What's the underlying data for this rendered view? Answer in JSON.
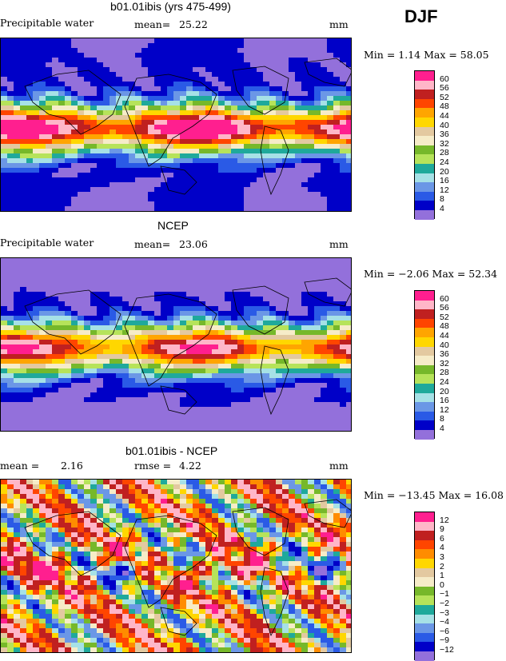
{
  "season": "DJF",
  "panels": [
    {
      "title": "b01.01ibis (yrs 475-499)",
      "left_label": "Precipitable water",
      "mean_label": "mean=",
      "mean_value": "25.22",
      "units": "mm",
      "minmax": "Min =    1.14 Max =   58.05",
      "levels": [
        "60",
        "56",
        "52",
        "48",
        "44",
        "40",
        "36",
        "32",
        "28",
        "24",
        "20",
        "16",
        "12",
        "8",
        "4"
      ],
      "colors": [
        "#ff1f8f",
        "#ffb6c8",
        "#c02020",
        "#ff4500",
        "#ffa500",
        "#ffd700",
        "#e3c9a0",
        "#f6ecc8",
        "#76b82a",
        "#b6e35a",
        "#1fa99b",
        "#a6e1e6",
        "#6b97e6",
        "#2a5ae6",
        "#0000c8",
        "#9370db"
      ]
    },
    {
      "title": "NCEP",
      "left_label": "Precipitable water",
      "mean_label": "mean=",
      "mean_value": "23.06",
      "units": "mm",
      "minmax": "Min =   −2.06 Max =   52.34",
      "levels": [
        "60",
        "56",
        "52",
        "48",
        "44",
        "40",
        "36",
        "32",
        "28",
        "24",
        "20",
        "16",
        "12",
        "8",
        "4"
      ],
      "colors": [
        "#ff1f8f",
        "#ffb6c8",
        "#c02020",
        "#ff4500",
        "#ffa500",
        "#ffd700",
        "#e3c9a0",
        "#f6ecc8",
        "#76b82a",
        "#b6e35a",
        "#1fa99b",
        "#a6e1e6",
        "#6b97e6",
        "#2a5ae6",
        "#0000c8",
        "#9370db"
      ]
    },
    {
      "title": "b01.01ibis - NCEP",
      "left_label": "mean =",
      "mean_label": "2.16",
      "rmse_label": "rmse =",
      "rmse_value": "4.22",
      "units": "mm",
      "minmax": "Min = −13.45 Max =   16.08",
      "levels": [
        "12",
        "9",
        "6",
        "4",
        "3",
        "2",
        "1",
        "0",
        "−1",
        "−2",
        "−3",
        "−4",
        "−6",
        "−9",
        "−12"
      ],
      "colors": [
        "#ff1f8f",
        "#ffb6c8",
        "#c02020",
        "#ff4500",
        "#ff8c00",
        "#ffd700",
        "#e3c9a0",
        "#f6ecc8",
        "#76b82a",
        "#b6e35a",
        "#1fa99b",
        "#a6e1e6",
        "#6b97e6",
        "#2a5ae6",
        "#0000c8",
        "#9370db"
      ]
    }
  ],
  "chart_data": {
    "type": "heatmap",
    "season": "DJF",
    "variable": "Precipitable water",
    "units": "mm",
    "maps": [
      {
        "title": "b01.01ibis (yrs 475-499)",
        "mean": 25.22,
        "min": 1.14,
        "max": 58.05,
        "contour_levels": [
          4,
          8,
          12,
          16,
          20,
          24,
          28,
          32,
          36,
          40,
          44,
          48,
          52,
          56,
          60
        ]
      },
      {
        "title": "NCEP",
        "mean": 23.06,
        "min": -2.06,
        "max": 52.34,
        "contour_levels": [
          4,
          8,
          12,
          16,
          20,
          24,
          28,
          32,
          36,
          40,
          44,
          48,
          52,
          56,
          60
        ]
      },
      {
        "title": "b01.01ibis - NCEP",
        "mean": 2.16,
        "rmse": 4.22,
        "min": -13.45,
        "max": 16.08,
        "contour_levels": [
          -12,
          -9,
          -6,
          -4,
          -3,
          -2,
          -1,
          0,
          1,
          2,
          3,
          4,
          6,
          9,
          12
        ]
      }
    ]
  }
}
